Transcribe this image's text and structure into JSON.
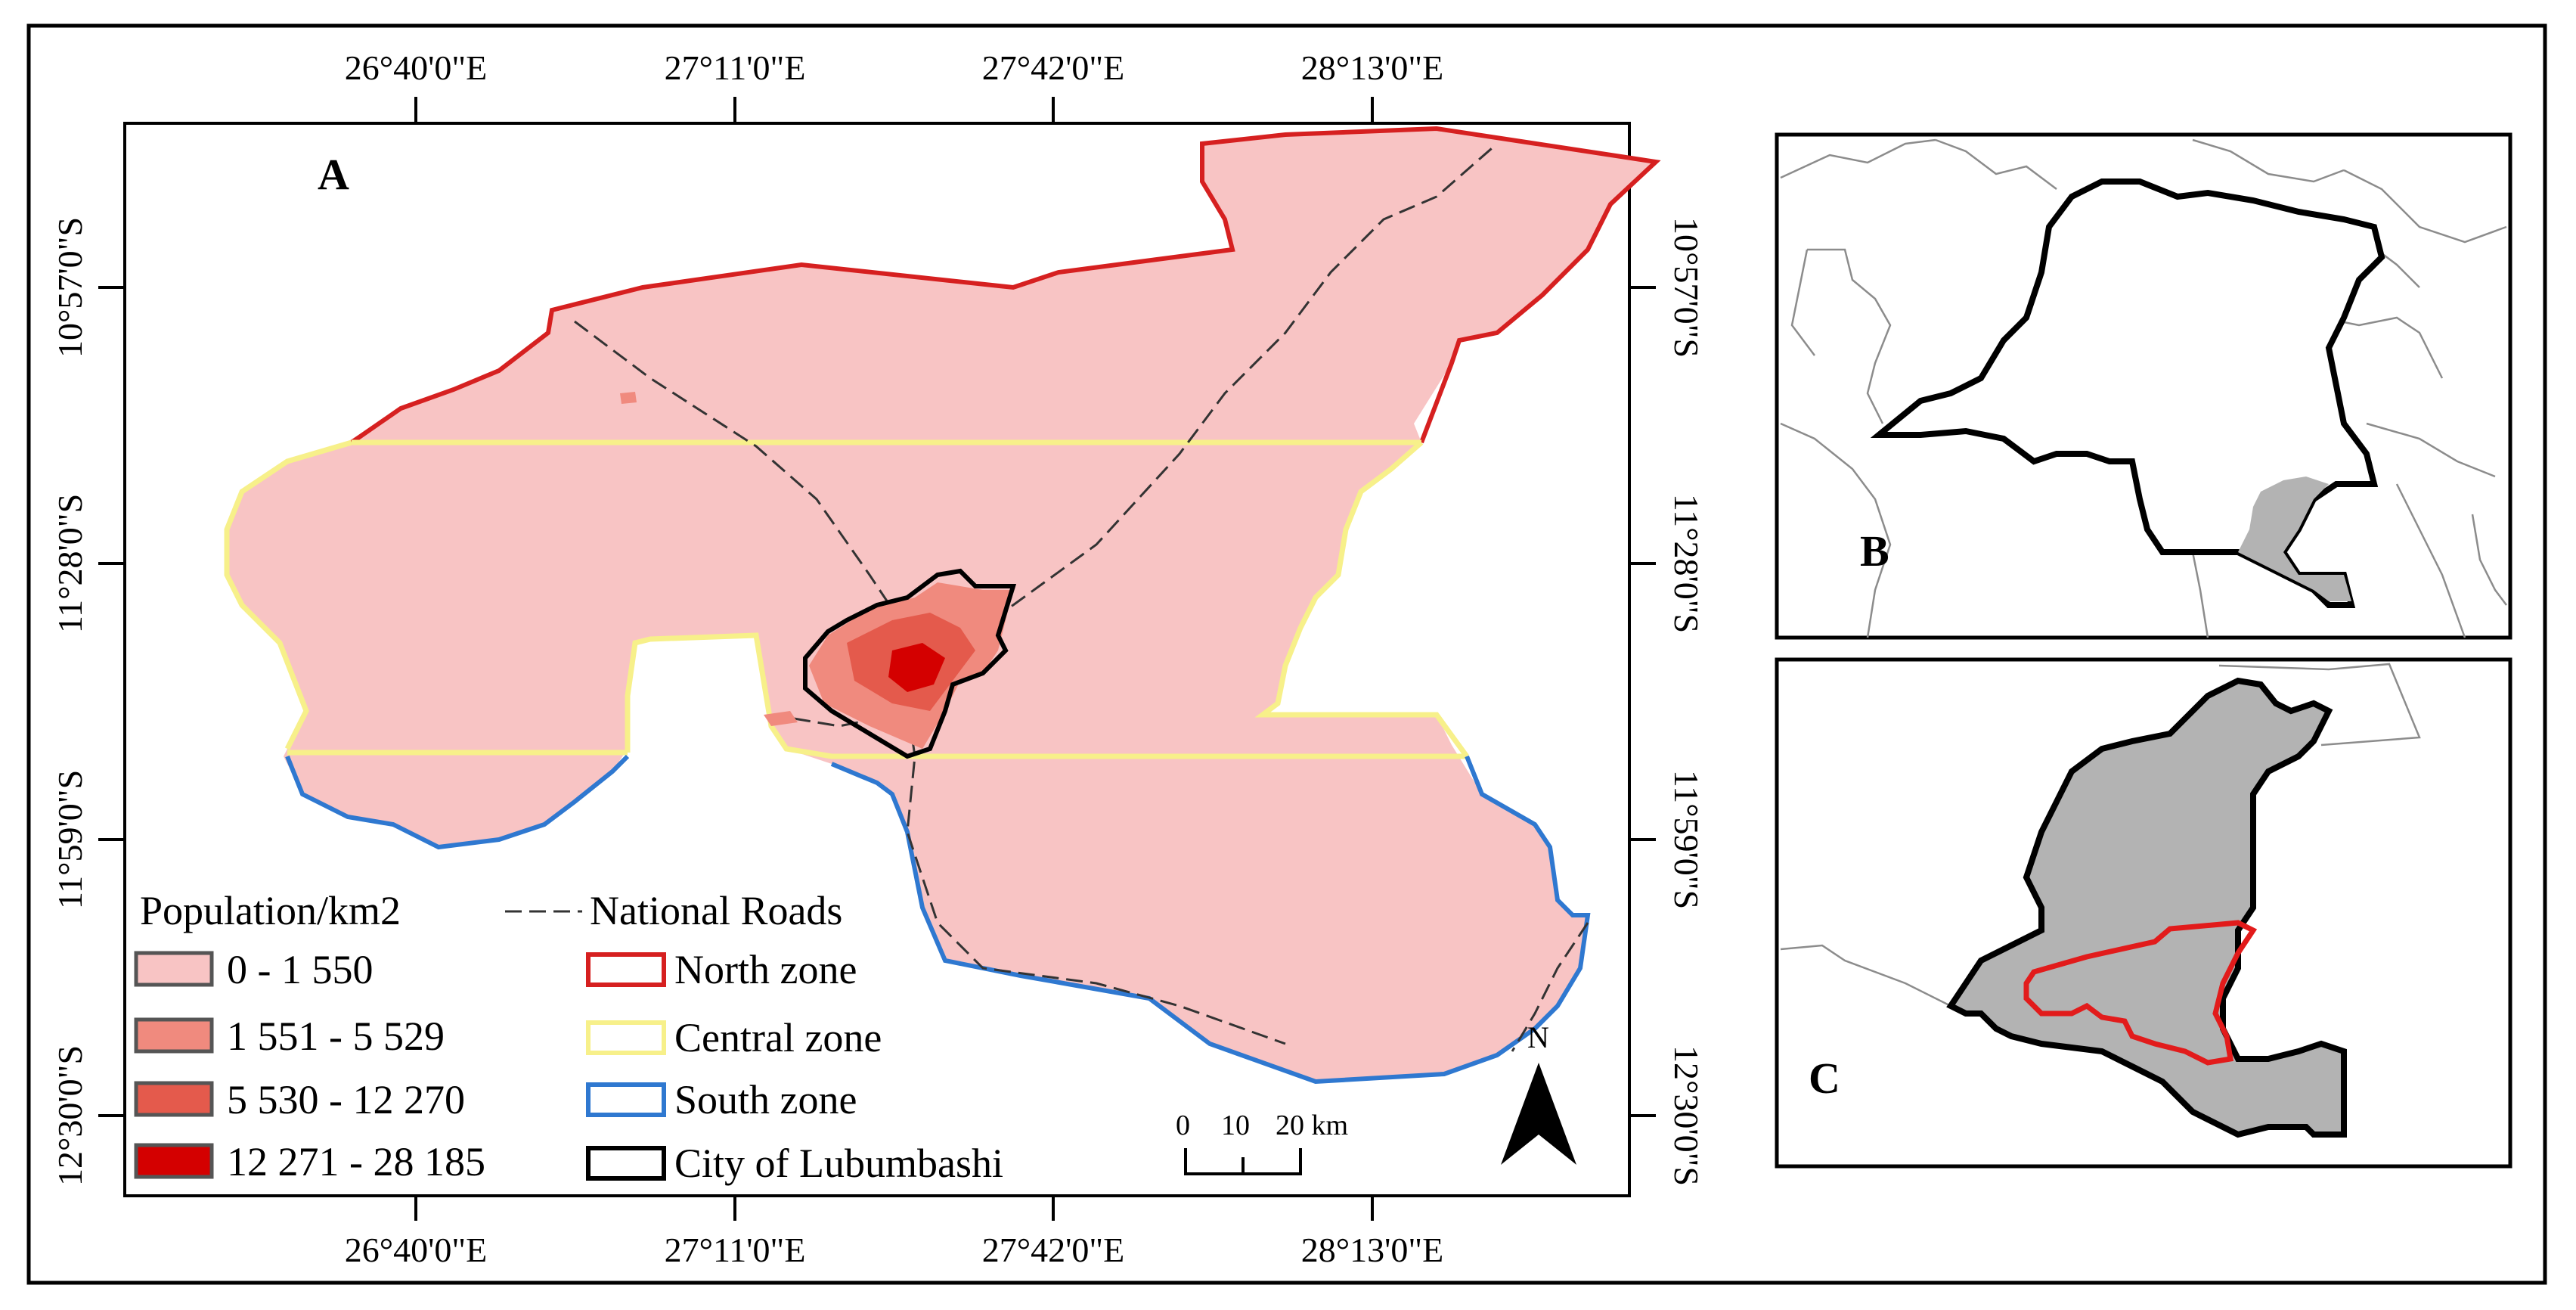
{
  "figure": {
    "panels": {
      "a": "A",
      "b": "B",
      "c": "C"
    },
    "top_longitude_labels": [
      "26°40'0\"E",
      "27°11'0\"E",
      "27°42'0\"E",
      "28°13'0\"E"
    ],
    "bottom_longitude_labels": [
      "26°40'0\"E",
      "27°11'0\"E",
      "27°42'0\"E",
      "28°13'0\"E"
    ],
    "left_latitude_labels": [
      "10°57'0\"S",
      "11°28'0\"S",
      "11°59'0\"S",
      "12°30'0\"S"
    ],
    "right_latitude_labels": [
      "10°57'0\"S",
      "11°28'0\"S",
      "11°59'0\"S",
      "12°30'0\"S"
    ],
    "legend": {
      "population_title": "Population/km2",
      "population_classes": [
        {
          "label": "0 - 1 550",
          "color": "#f8c4c4"
        },
        {
          "label": "1 551 - 5 529",
          "color": "#f08a7e"
        },
        {
          "label": "5 530 - 12 270",
          "color": "#e45a4c"
        },
        {
          "label": "12 271 - 28 185",
          "color": "#d40000"
        }
      ],
      "roads_label": "National Roads",
      "zones": [
        {
          "label": "North zone",
          "color": "#d62020"
        },
        {
          "label": "Central zone",
          "color": "#f7f08a"
        },
        {
          "label": "South zone",
          "color": "#2f78d0"
        },
        {
          "label": "City of Lubumbashi",
          "color": "#000000"
        }
      ]
    },
    "scale_bar": {
      "ticks": [
        "0",
        "10",
        "20 km"
      ]
    },
    "north_arrow": {
      "label": "N"
    },
    "colors": {
      "region_fill": "#f8c4c4",
      "inset_fill": "#b3b3b3",
      "inset_highlight": "#d62020",
      "country_outline": "#000000",
      "neighbor_lines": "#8c8c8c"
    }
  }
}
